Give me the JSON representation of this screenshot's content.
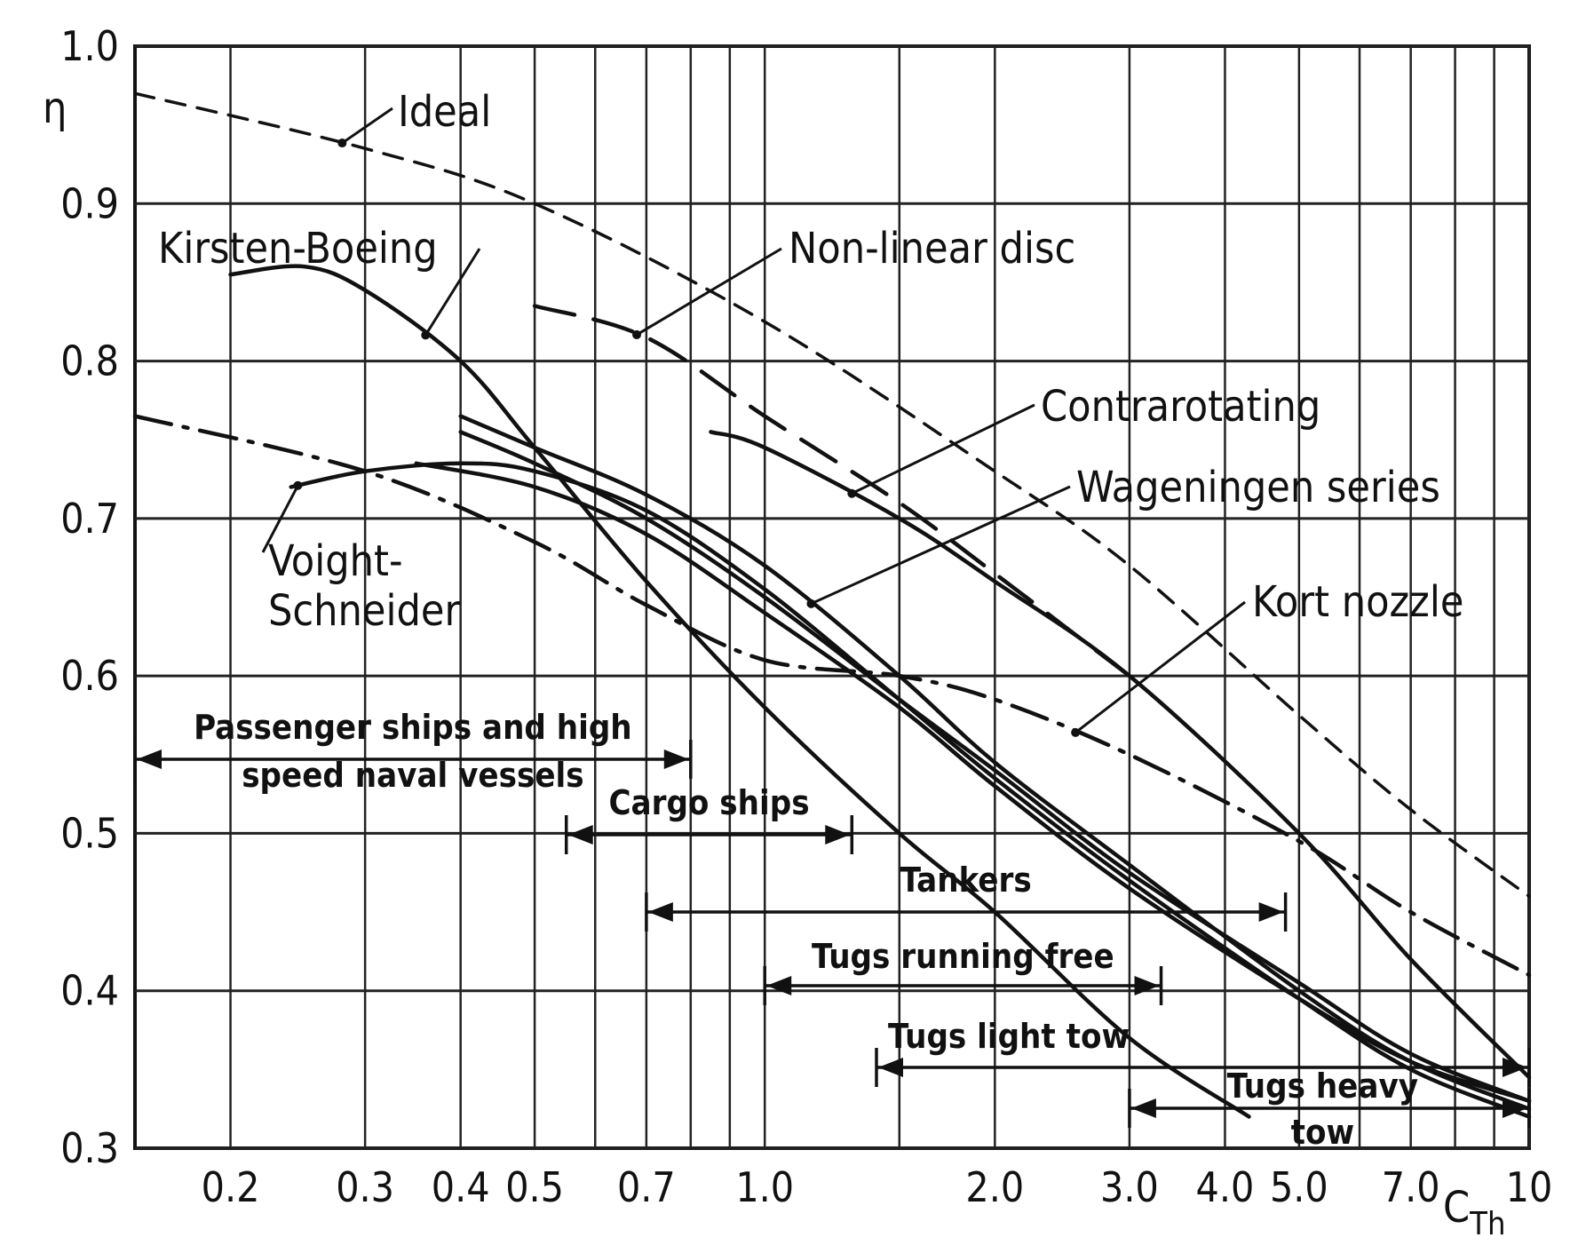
{
  "chart_data": {
    "type": "line",
    "xscale": "log",
    "xlim": [
      0.15,
      10
    ],
    "ylim": [
      0.3,
      1.0
    ],
    "xlabel": "C",
    "xlabel_sub": "Th",
    "ylabel": "η",
    "grid": true,
    "x_ticks": [
      0.2,
      0.3,
      0.4,
      0.5,
      0.7,
      1.0,
      2.0,
      3.0,
      4.0,
      5.0,
      7.0,
      10
    ],
    "x_tick_labels": [
      "0.2",
      "0.3",
      "0.4",
      "0.5",
      "0.7",
      "1.0",
      "2.0",
      "3.0",
      "4.0",
      "5.0",
      "7.0",
      "10"
    ],
    "x_grid_extra": [
      0.6,
      0.8,
      0.9,
      1.5,
      6.0,
      8.0,
      9.0
    ],
    "y_ticks": [
      0.3,
      0.4,
      0.5,
      0.6,
      0.7,
      0.8,
      0.9,
      1.0
    ],
    "y_tick_labels": [
      "0.3",
      "0.4",
      "0.5",
      "0.6",
      "0.7",
      "0.8",
      "0.9",
      "1.0"
    ],
    "series": [
      {
        "name": "Ideal",
        "style": "dashed",
        "x": [
          0.15,
          0.3,
          0.5,
          1.0,
          2.0,
          3.0,
          5.0,
          7.0,
          10
        ],
        "y": [
          0.97,
          0.935,
          0.9,
          0.825,
          0.73,
          0.67,
          0.575,
          0.515,
          0.46
        ]
      },
      {
        "name": "Non-linear disc",
        "style": "longdash",
        "x": [
          0.5,
          0.7,
          1.0,
          1.5,
          2.0,
          3.0
        ],
        "y": [
          0.835,
          0.815,
          0.765,
          0.71,
          0.665,
          0.6
        ]
      },
      {
        "name": "Kirsten-Boeing",
        "style": "solid",
        "x": [
          0.2,
          0.25,
          0.3,
          0.4,
          0.5,
          0.7,
          1.0,
          1.5,
          2.0,
          3.0,
          4.3
        ],
        "y": [
          0.855,
          0.86,
          0.845,
          0.8,
          0.745,
          0.66,
          0.58,
          0.5,
          0.45,
          0.37,
          0.32
        ]
      },
      {
        "name": "Contrarotating",
        "style": "solid",
        "x": [
          0.85,
          1.0,
          1.5,
          2.0,
          3.0,
          5.0,
          7.0,
          10
        ],
        "y": [
          0.755,
          0.745,
          0.7,
          0.66,
          0.6,
          0.5,
          0.42,
          0.345
        ]
      },
      {
        "name": "Wageningen series",
        "style": "solid",
        "x": [
          0.4,
          0.5,
          0.7,
          1.0,
          1.5,
          2.0,
          3.0,
          5.0,
          7.0,
          10
        ],
        "y": [
          0.765,
          0.745,
          0.715,
          0.67,
          0.6,
          0.545,
          0.48,
          0.4,
          0.355,
          0.325
        ]
      },
      {
        "name": "Voight-Schneider",
        "style": "solid",
        "x": [
          0.24,
          0.3,
          0.4,
          0.5,
          0.7,
          1.0,
          1.5,
          2.0,
          3.0,
          5.0,
          7.0,
          10
        ],
        "y": [
          0.72,
          0.73,
          0.735,
          0.73,
          0.705,
          0.655,
          0.585,
          0.535,
          0.47,
          0.395,
          0.35,
          0.32
        ]
      },
      {
        "name": "",
        "style": "solid",
        "x": [
          0.35,
          0.5,
          0.7,
          1.0,
          1.5,
          2.0,
          3.0,
          5.0,
          7.0,
          10
        ],
        "y": [
          0.735,
          0.72,
          0.69,
          0.64,
          0.58,
          0.53,
          0.465,
          0.395,
          0.355,
          0.33
        ]
      },
      {
        "name": "",
        "style": "solid",
        "x": [
          0.4,
          0.5,
          0.7,
          1.0,
          1.5,
          2.0,
          3.0,
          5.0,
          7.0,
          10
        ],
        "y": [
          0.755,
          0.735,
          0.7,
          0.65,
          0.585,
          0.54,
          0.475,
          0.405,
          0.36,
          0.33
        ]
      },
      {
        "name": "Kort nozzle",
        "style": "dashdot",
        "x": [
          0.15,
          0.3,
          0.5,
          0.7,
          1.0,
          1.5,
          2.0,
          3.0,
          5.0,
          7.0,
          10
        ],
        "y": [
          0.765,
          0.73,
          0.685,
          0.645,
          0.61,
          0.6,
          0.585,
          0.55,
          0.495,
          0.45,
          0.41
        ]
      }
    ],
    "range_labels": [
      {
        "label_lines": [
          "Passenger ships and high",
          "speed naval vessels"
        ],
        "x_from": 0.15,
        "x_to": 0.8
      },
      {
        "label_lines": [
          "Cargo ships"
        ],
        "x_from": 0.55,
        "x_to": 1.3
      },
      {
        "label_lines": [
          "Tankers"
        ],
        "x_from": 0.7,
        "x_to": 4.8
      },
      {
        "label_lines": [
          "Tugs running free"
        ],
        "x_from": 1.0,
        "x_to": 3.3
      },
      {
        "label_lines": [
          "Tugs light tow"
        ],
        "x_from": 1.4,
        "x_to": 10
      },
      {
        "label_lines": [
          "Tugs heavy",
          "tow"
        ],
        "x_from": 3.0,
        "x_to": 10
      }
    ]
  }
}
